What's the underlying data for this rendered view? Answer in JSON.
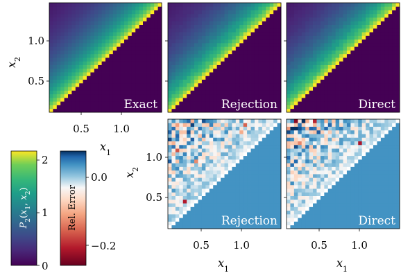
{
  "chart_data": [
    {
      "type": "heatmap",
      "panel_label": "Exact",
      "quantity": "probability",
      "xlabel": "x_1",
      "ylabel": "x_2",
      "xticks": [
        "0.5",
        "1.0"
      ],
      "yticks": [
        "0.5",
        "1.0"
      ],
      "xlim": [
        0.05,
        1.5
      ],
      "ylim": [
        0.05,
        1.5
      ],
      "region": "upper triangle x_2 > x_1",
      "grid": "30x30"
    },
    {
      "type": "heatmap",
      "panel_label": "Rejection",
      "quantity": "probability",
      "xlim": [
        0.05,
        1.5
      ],
      "ylim": [
        0.05,
        1.5
      ],
      "region": "upper triangle x_2 > x_1"
    },
    {
      "type": "heatmap",
      "panel_label": "Direct",
      "quantity": "probability",
      "xlim": [
        0.05,
        1.5
      ],
      "ylim": [
        0.05,
        1.5
      ],
      "region": "upper triangle x_2 > x_1"
    },
    {
      "type": "heatmap",
      "panel_label": "Rejection",
      "quantity": "relative error",
      "xlabel": "x_1",
      "ylabel": "x_2",
      "xticks": [
        "0.5",
        "1.0"
      ],
      "yticks": [
        "0.5",
        "1.0"
      ],
      "xlim": [
        0.05,
        1.5
      ],
      "ylim": [
        0.05,
        1.5
      ]
    },
    {
      "type": "heatmap",
      "panel_label": "Direct",
      "quantity": "relative error",
      "xlabel": "x_1",
      "xticks": [
        "0.5",
        "1.0"
      ],
      "xlim": [
        0.05,
        1.5
      ],
      "ylim": [
        0.05,
        1.5
      ]
    }
  ],
  "colorbars": {
    "probability": {
      "label": "P_2(x_1, x_2)",
      "colormap": "viridis",
      "range": [
        0,
        2.15
      ],
      "ticks": [
        "0",
        "1",
        "2"
      ],
      "tick_values": [
        0,
        1,
        2
      ]
    },
    "relative_error": {
      "label": "Rel. Error",
      "colormap": "RdBu",
      "range": [
        -0.27,
        0.1
      ],
      "ticks": [
        "0.0",
        "−0.2"
      ],
      "tick_values": [
        0.0,
        -0.2
      ]
    }
  },
  "text": {
    "exact": "Exact",
    "rejection": "Rejection",
    "direct": "Direct",
    "x1": "x",
    "x2": "x",
    "sub1": "1",
    "sub2": "2",
    "t05": "0.5",
    "t10": "1.0",
    "c0": "0",
    "c1": "1",
    "c2": "2",
    "e0": "0.0",
    "em2": "−0.2",
    "rel_error": "Rel. Error",
    "p2_label": "P"
  }
}
